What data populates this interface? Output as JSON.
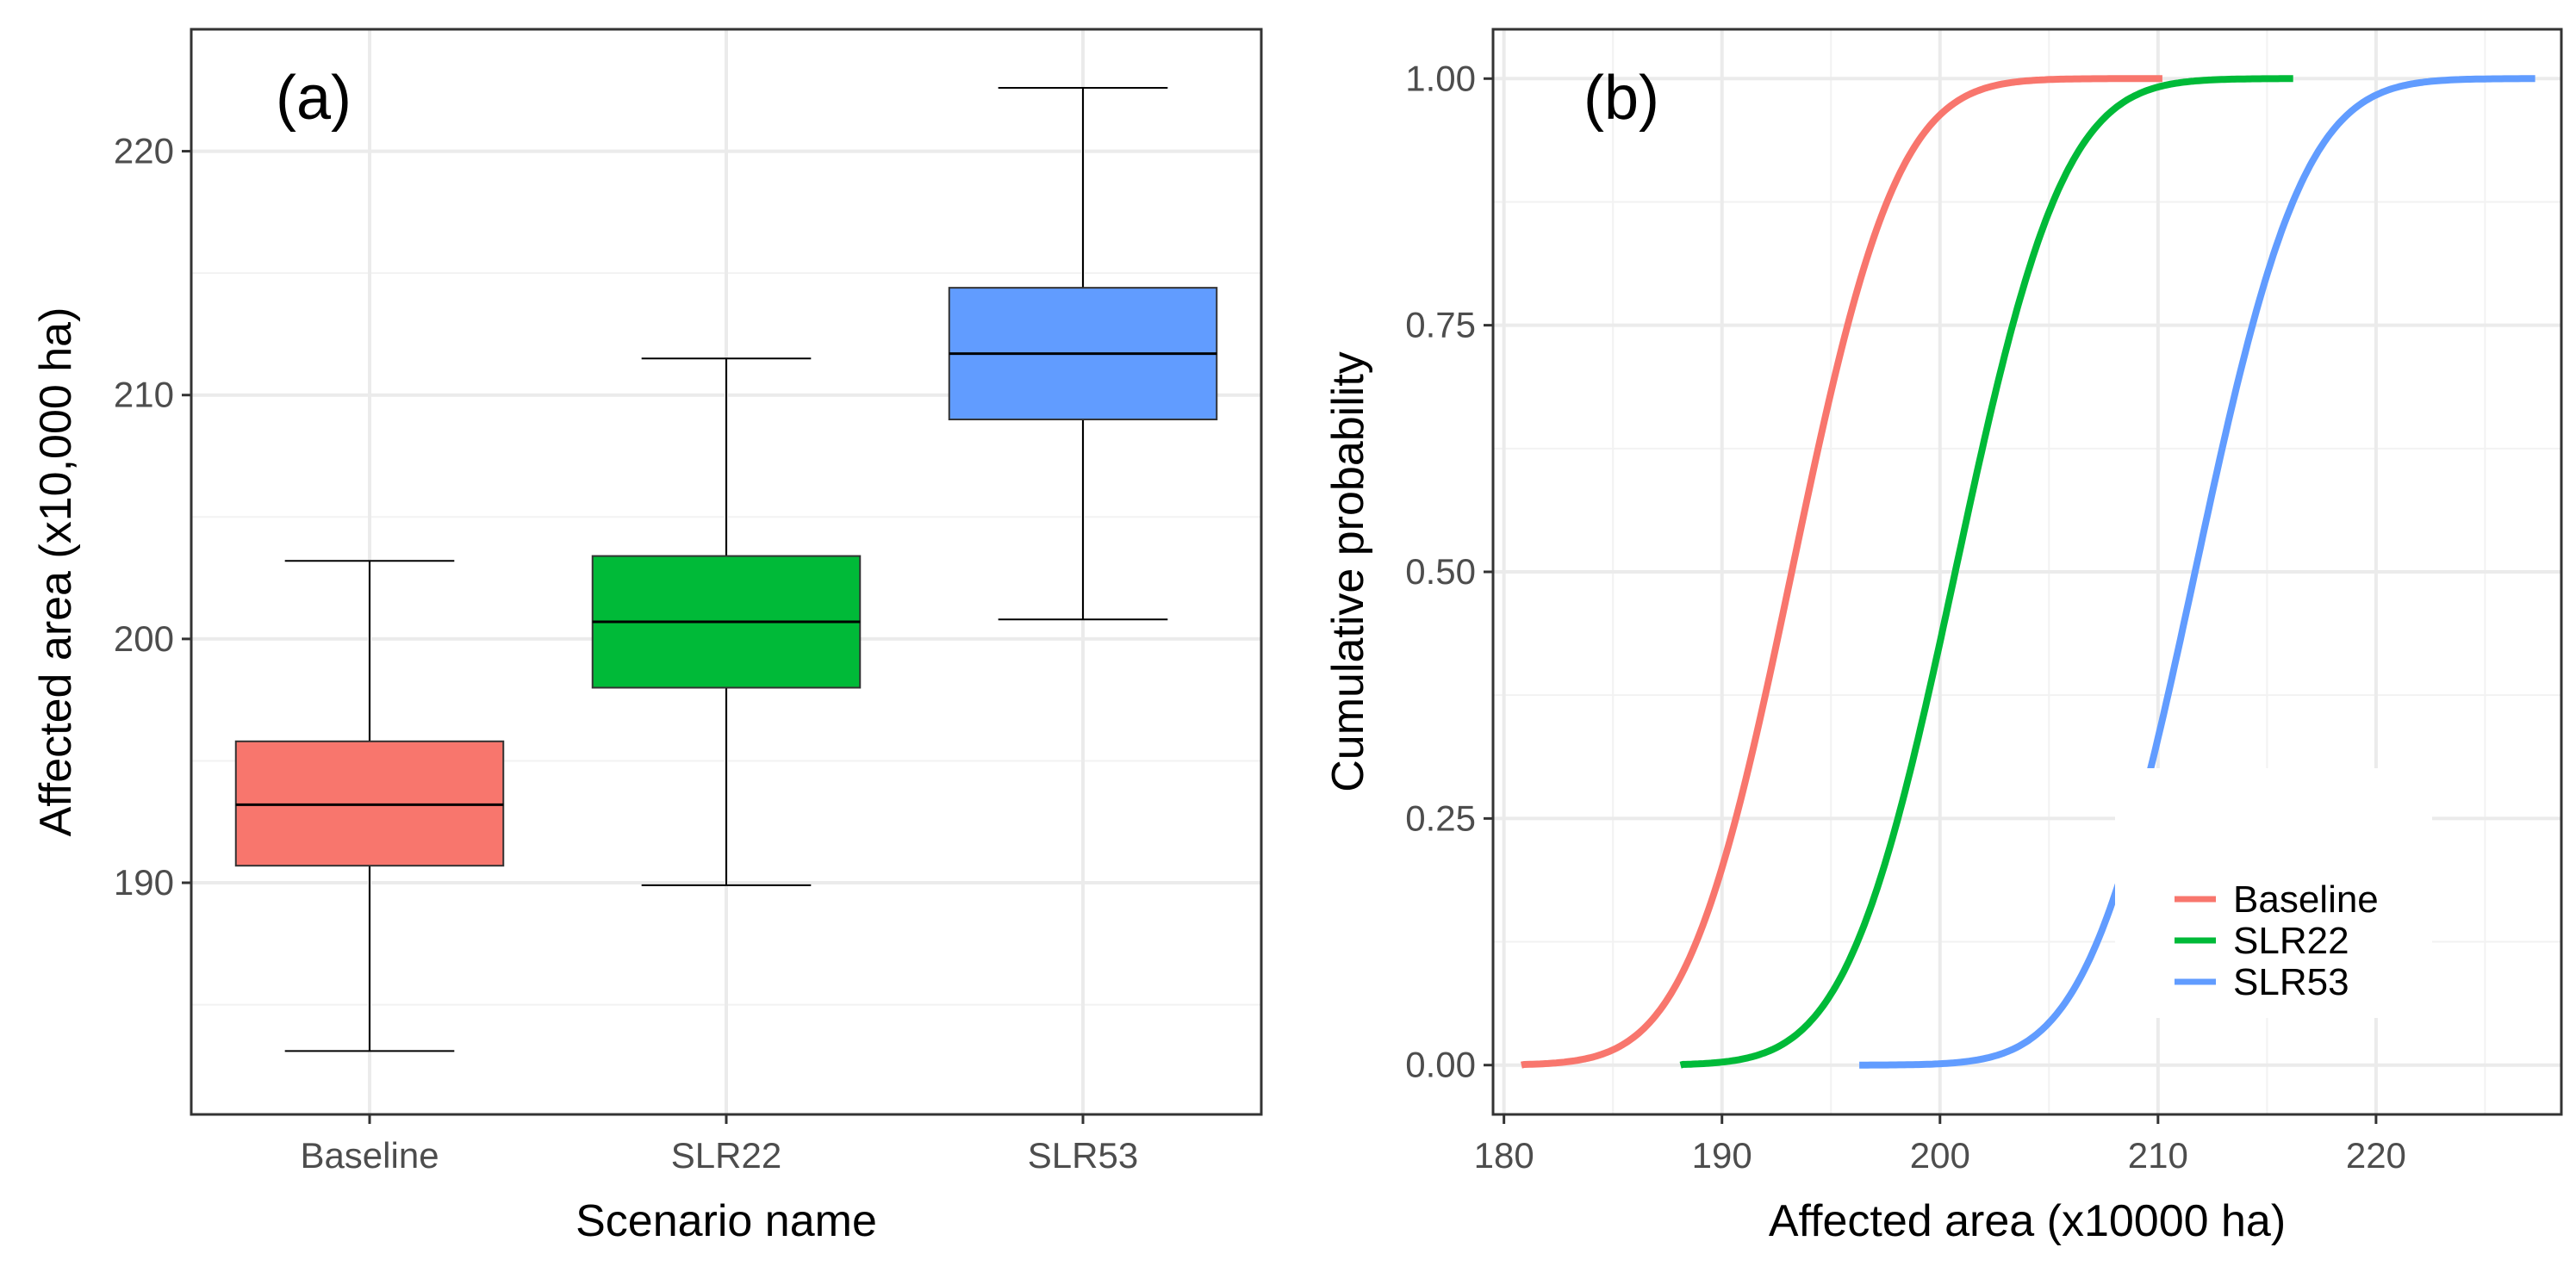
{
  "chart_data": [
    {
      "panel": "(a)",
      "type": "boxplot",
      "xlabel": "Scenario name",
      "ylabel": "Affected area (x10,000 ha)",
      "categories": [
        "Baseline",
        "SLR22",
        "SLR53"
      ],
      "ylim": [
        180.5,
        225
      ],
      "yticks": [
        190,
        200,
        210,
        220
      ],
      "tick_labels": [
        "190",
        "200",
        "210",
        "220"
      ],
      "boxes": [
        {
          "name": "Baseline",
          "whisker_low": 183.1,
          "q1": 190.7,
          "median": 193.2,
          "q3": 195.8,
          "whisker_high": 203.2,
          "color": "#F8766D"
        },
        {
          "name": "SLR22",
          "whisker_low": 189.9,
          "q1": 198.0,
          "median": 200.7,
          "q3": 203.4,
          "whisker_high": 211.5,
          "color": "#00BA38"
        },
        {
          "name": "SLR53",
          "whisker_low": 200.8,
          "q1": 209.0,
          "median": 211.7,
          "q3": 214.4,
          "whisker_high": 222.6,
          "color": "#619CFF"
        }
      ]
    },
    {
      "panel": "(b)",
      "type": "line",
      "xlabel": "Affected area (x10000 ha)",
      "ylabel": "Cumulative probability",
      "xlim": [
        179.5,
        228.5
      ],
      "ylim": [
        -0.05,
        1.05
      ],
      "xticks": [
        180,
        190,
        200,
        210,
        220
      ],
      "xtick_labels": [
        "180",
        "190",
        "200",
        "210",
        "220"
      ],
      "yticks": [
        0,
        0.25,
        0.5,
        0.75,
        1
      ],
      "ytick_labels": [
        "0.00",
        "0.25",
        "0.50",
        "0.75",
        "1.00"
      ],
      "legend": {
        "position": "bottom-right",
        "entries": [
          "Baseline",
          "SLR22",
          "SLR53"
        ]
      },
      "series": [
        {
          "name": "Baseline",
          "color": "#F8766D",
          "mean": 193.2,
          "sd": 3.8,
          "x_min": 180.8,
          "x_max": 210.2
        },
        {
          "name": "SLR22",
          "color": "#00BA38",
          "mean": 200.7,
          "sd": 3.9,
          "x_min": 188.1,
          "x_max": 216.2
        },
        {
          "name": "SLR53",
          "color": "#619CFF",
          "mean": 211.7,
          "sd": 3.9,
          "x_min": 196.3,
          "x_max": 227.3
        }
      ]
    }
  ]
}
